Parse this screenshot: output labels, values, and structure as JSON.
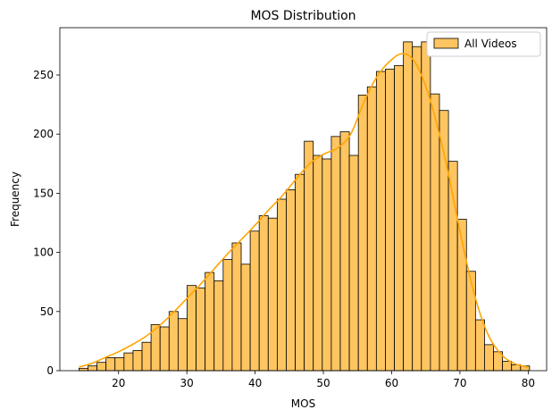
{
  "chart_data": {
    "type": "bar",
    "title": "MOS Distribution",
    "xlabel": "MOS",
    "ylabel": "Frequency",
    "xlim": [
      11.4,
      82.7
    ],
    "ylim": [
      0,
      290
    ],
    "x_ticks": [
      20,
      30,
      40,
      50,
      60,
      70,
      80
    ],
    "y_ticks": [
      0,
      50,
      100,
      150,
      200,
      250
    ],
    "grid": false,
    "legend_position": "top-right",
    "bin_start": 14.2,
    "bin_width": 1.32,
    "series": [
      {
        "name": "All Videos",
        "kind": "histogram",
        "color": "#ffc561",
        "edge_color": "#000000",
        "values": [
          2,
          4,
          7,
          11,
          11,
          15,
          17,
          24,
          39,
          37,
          50,
          44,
          72,
          70,
          83,
          76,
          94,
          108,
          90,
          118,
          131,
          129,
          145,
          153,
          166,
          194,
          182,
          179,
          198,
          202,
          182,
          233,
          240,
          253,
          255,
          258,
          278,
          274,
          278,
          234,
          220,
          177,
          128,
          84,
          43,
          22,
          16,
          8,
          5,
          4
        ]
      },
      {
        "name": "KDE",
        "kind": "line",
        "color": "#ffa500",
        "x": [
          14.2,
          16,
          18,
          20,
          22,
          24,
          26,
          28,
          30,
          32,
          34,
          36,
          38,
          40,
          42,
          44,
          46,
          48,
          50,
          52,
          54,
          56,
          58,
          60,
          61.5,
          63,
          64.5,
          66,
          68,
          70,
          72,
          74,
          76,
          78,
          80
        ],
        "values": [
          3,
          6,
          11,
          16,
          22,
          29,
          38,
          49,
          61,
          73,
          86,
          99,
          111,
          123,
          136,
          148,
          162,
          175,
          183,
          188,
          200,
          228,
          250,
          263,
          268,
          264,
          248,
          222,
          175,
          118,
          67,
          32,
          14,
          6,
          3
        ]
      }
    ]
  }
}
